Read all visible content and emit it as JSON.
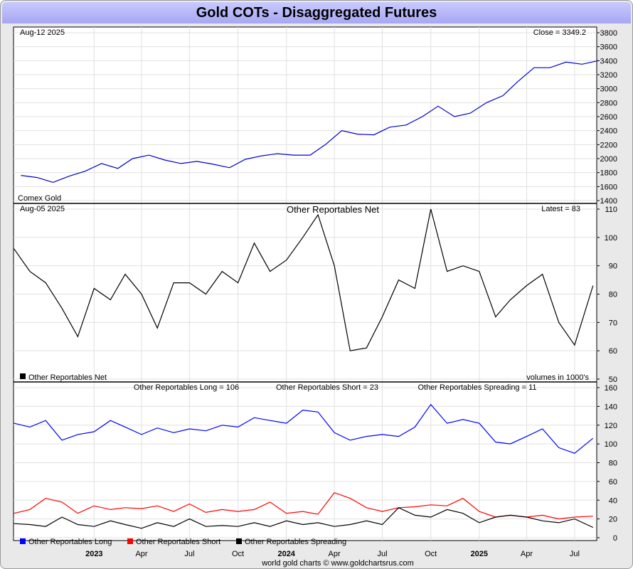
{
  "title": "Gold COTs - Disaggregated Futures",
  "footer": "world gold charts © www.goldchartsrus.com",
  "chart_data": [
    {
      "type": "line",
      "panel": "price",
      "date_label": "Aug-12  2025",
      "close_label": "Close = 3349.2",
      "series_label": "Comex Gold",
      "color": "#0000cc",
      "ylim": [
        1400,
        3800
      ],
      "yticks": [
        1400,
        1600,
        1800,
        2000,
        2200,
        2400,
        2600,
        2800,
        3000,
        3200,
        3400,
        3600,
        3800
      ],
      "x": [
        "2022-08",
        "2022-09",
        "2022-10",
        "2022-11",
        "2022-12",
        "2023-01",
        "2023-02",
        "2023-03",
        "2023-04",
        "2023-05",
        "2023-06",
        "2023-07",
        "2023-08",
        "2023-09",
        "2023-10",
        "2023-11",
        "2023-12",
        "2024-01",
        "2024-02",
        "2024-03",
        "2024-04",
        "2024-05",
        "2024-06",
        "2024-07",
        "2024-08",
        "2024-09",
        "2024-10",
        "2024-11",
        "2024-12",
        "2025-01",
        "2025-02",
        "2025-03",
        "2025-04",
        "2025-05",
        "2025-06",
        "2025-07",
        "2025-08"
      ],
      "values": [
        1760,
        1730,
        1660,
        1750,
        1820,
        1930,
        1860,
        2000,
        2050,
        1980,
        1930,
        1960,
        1920,
        1870,
        1990,
        2040,
        2070,
        2050,
        2050,
        2200,
        2400,
        2350,
        2340,
        2450,
        2480,
        2600,
        2750,
        2600,
        2650,
        2800,
        2900,
        3100,
        3300,
        3300,
        3380,
        3350,
        3400
      ]
    },
    {
      "type": "line",
      "panel": "net",
      "date_label": "Aug-05  2025",
      "title": "Other Reportables Net",
      "latest_label": "Latest = 83",
      "units_label": "volumes in 1000's",
      "legend": "Other Reportables Net",
      "color": "#000000",
      "ylim": [
        50,
        110
      ],
      "yticks": [
        50,
        60,
        70,
        80,
        90,
        100,
        110
      ],
      "x": [
        "2022-08-02",
        "2022-09-01",
        "2022-10-01",
        "2022-11-01",
        "2022-12-01",
        "2023-01-01",
        "2023-02-01",
        "2023-03-01",
        "2023-04-01",
        "2023-05-01",
        "2023-06-01",
        "2023-07-01",
        "2023-08-01",
        "2023-09-01",
        "2023-10-01",
        "2023-11-01",
        "2023-12-01",
        "2024-01-01",
        "2024-02-01",
        "2024-03-01",
        "2024-04-01",
        "2024-05-01",
        "2024-06-01",
        "2024-07-01",
        "2024-08-01",
        "2024-09-01",
        "2024-10-01",
        "2024-11-01",
        "2024-12-01",
        "2025-01-01",
        "2025-02-01",
        "2025-03-01",
        "2025-04-01",
        "2025-05-01",
        "2025-06-01",
        "2025-07-01",
        "2025-08-05"
      ],
      "values": [
        96,
        88,
        84,
        75,
        65,
        82,
        78,
        87,
        80,
        68,
        84,
        84,
        80,
        88,
        84,
        98,
        88,
        92,
        100,
        108,
        90,
        60,
        61,
        72,
        85,
        82,
        110,
        88,
        90,
        88,
        72,
        78,
        83,
        87,
        70,
        62,
        83
      ]
    },
    {
      "type": "line",
      "panel": "positions",
      "labels": {
        "long": "Other Reportables Long = 106",
        "short": "Other Reportables Short = 23",
        "spreading": "Other Reportables Spreading = 11"
      },
      "ylim": [
        0,
        160
      ],
      "yticks": [
        0,
        20,
        40,
        60,
        80,
        100,
        120,
        140,
        160
      ],
      "x_labels": [
        "2023",
        "Apr",
        "Jul",
        "Oct",
        "2024",
        "Apr",
        "Jul",
        "Oct",
        "2025",
        "Apr",
        "Jul"
      ],
      "x_label_dates": [
        "2023-01-01",
        "2023-04-01",
        "2023-07-01",
        "2023-10-01",
        "2024-01-01",
        "2024-04-01",
        "2024-07-01",
        "2024-10-01",
        "2025-01-01",
        "2025-04-01",
        "2025-07-01"
      ],
      "x": [
        "2022-08-02",
        "2022-09-01",
        "2022-10-01",
        "2022-11-01",
        "2022-12-01",
        "2023-01-01",
        "2023-02-01",
        "2023-03-01",
        "2023-04-01",
        "2023-05-01",
        "2023-06-01",
        "2023-07-01",
        "2023-08-01",
        "2023-09-01",
        "2023-10-01",
        "2023-11-01",
        "2023-12-01",
        "2024-01-01",
        "2024-02-01",
        "2024-03-01",
        "2024-04-01",
        "2024-05-01",
        "2024-06-01",
        "2024-07-01",
        "2024-08-01",
        "2024-09-01",
        "2024-10-01",
        "2024-11-01",
        "2024-12-01",
        "2025-01-01",
        "2025-02-01",
        "2025-03-01",
        "2025-04-01",
        "2025-05-01",
        "2025-06-01",
        "2025-07-01",
        "2025-08-05"
      ],
      "series": [
        {
          "name": "Other Reportables Long",
          "color": "#0000ff",
          "values": [
            122,
            118,
            125,
            104,
            110,
            113,
            125,
            118,
            110,
            117,
            112,
            116,
            114,
            120,
            118,
            128,
            125,
            122,
            136,
            134,
            112,
            104,
            108,
            110,
            108,
            118,
            142,
            122,
            126,
            122,
            102,
            100,
            108,
            116,
            96,
            90,
            106
          ]
        },
        {
          "name": "Other Reportables Short",
          "color": "#ff0000",
          "values": [
            26,
            30,
            42,
            38,
            26,
            34,
            30,
            32,
            31,
            34,
            28,
            36,
            27,
            30,
            28,
            30,
            38,
            26,
            28,
            25,
            48,
            42,
            32,
            28,
            32,
            33,
            35,
            34,
            42,
            28,
            22,
            24,
            22,
            24,
            20,
            22,
            23
          ]
        },
        {
          "name": "Other Reportables Spreading",
          "color": "#000000",
          "values": [
            15,
            14,
            12,
            22,
            14,
            12,
            18,
            14,
            10,
            16,
            12,
            20,
            12,
            13,
            12,
            16,
            12,
            18,
            14,
            16,
            12,
            14,
            18,
            14,
            32,
            24,
            22,
            30,
            26,
            16,
            22,
            24,
            22,
            18,
            16,
            20,
            11
          ]
        }
      ]
    }
  ]
}
